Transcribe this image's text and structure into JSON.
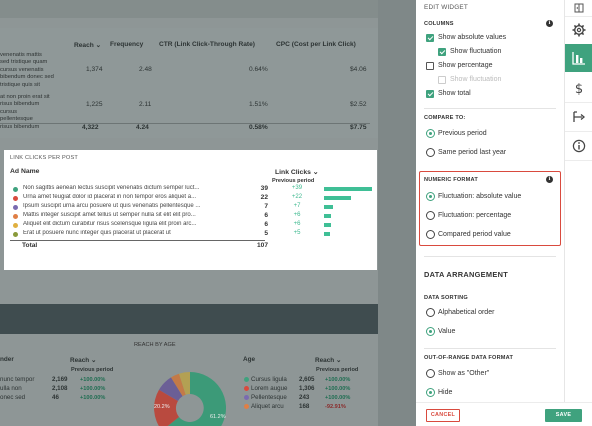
{
  "top_table": {
    "headers": {
      "reach": "Reach",
      "frequency": "Frequency",
      "ctr": "CTR (Link Click-Through Rate)",
      "cpc": "CPC (Cost per Link Click)"
    },
    "row1_desc": [
      "venenatis mattis",
      "sed tristique quam",
      "cursus venenatis",
      "bibendum donec sed",
      "tristique quis sit"
    ],
    "row2_desc": [
      "at non proin erat sit",
      "risus bibendum",
      "cursus",
      "pellentesque",
      "risus bibendum"
    ],
    "rows": [
      {
        "reach": "1,374",
        "frequency": "2.48",
        "ctr": "0.64%",
        "cpc": "$4.06"
      },
      {
        "reach": "1,225",
        "frequency": "2.11",
        "ctr": "1.51%",
        "cpc": "$2.52"
      }
    ],
    "total": {
      "reach": "4,322",
      "frequency": "4.24",
      "ctr": "0.58%",
      "cpc": "$7.75"
    }
  },
  "link_clicks": {
    "title": "LINK CLICKS PER POST",
    "col_ad_name": "Ad Name",
    "col_link_clicks": "Link Clicks",
    "subheader": "Previous period",
    "rows": [
      {
        "name": "Non sagittis aenean lectus suscipit venenatis dictum semper luct...",
        "value": "39",
        "delta": "+39",
        "dot": "#3fa27e",
        "bar_fraction": 1.0
      },
      {
        "name": "Urna amet feugiat dolor id placerat in non tempor eros aliquet a...",
        "value": "22",
        "delta": "+22",
        "dot": "#d94a3e",
        "bar_fraction": 0.56
      },
      {
        "name": "Ipsum suscipit urna arcu posuere ut quis venenatis pellentesque ...",
        "value": "7",
        "delta": "+7",
        "dot": "#7a6bb0",
        "bar_fraction": 0.18
      },
      {
        "name": "Mattis integer suscipit amet tellus ut semper nulla sit elit elit pro...",
        "value": "6",
        "delta": "+6",
        "dot": "#e07f45",
        "bar_fraction": 0.15
      },
      {
        "name": "Aliquet elit dictum curabitur risus scelerisque ligula elit proin arc...",
        "value": "6",
        "delta": "+6",
        "dot": "#e0b040",
        "bar_fraction": 0.15
      },
      {
        "name": "Erat ut posuere nunc integer quis placerat ut placerat ut",
        "value": "5",
        "delta": "+5",
        "dot": "#8a9a3a",
        "bar_fraction": 0.13
      }
    ],
    "total_label": "Total",
    "total_value": "107"
  },
  "bottom": {
    "gender_header": "nder",
    "reach_header": "Reach",
    "previous_period": "Previous period",
    "gender_rows": [
      {
        "label": "nunc tempor",
        "reach": "2,169",
        "delta": "+100.00%"
      },
      {
        "label": "ulla non",
        "reach": "2,108",
        "delta": "+100.00%"
      },
      {
        "label": "onec sed",
        "reach": "46",
        "delta": "+100.00%"
      }
    ],
    "reach_by_age": "REACH BY AGE",
    "pie_labels": [
      "20.2%",
      "61.2%"
    ],
    "age_header": "Age",
    "age_reach_header": "Reach",
    "age_rows": [
      {
        "label": "Cursus ligula",
        "reach": "2,605",
        "delta": "+100.00%",
        "dot": "#3fa27e",
        "down": false
      },
      {
        "label": "Lorem augue",
        "reach": "1,306",
        "delta": "+100.00%",
        "dot": "#d94a3e",
        "down": false
      },
      {
        "label": "Pellentesque",
        "reach": "243",
        "delta": "+100.00%",
        "dot": "#7a6bb0",
        "down": false
      },
      {
        "label": "Aliquet arcu",
        "reach": "168",
        "delta": "-92.91%",
        "dot": "#e07f45",
        "down": true
      }
    ]
  },
  "panel": {
    "title": "EDIT WIDGET",
    "columns_label": "COLUMNS",
    "columns": [
      {
        "label": "Show absolute values",
        "checked": true,
        "disabled": false,
        "indent": false
      },
      {
        "label": "Show fluctuation",
        "checked": true,
        "disabled": false,
        "indent": true
      },
      {
        "label": "Show percentage",
        "checked": false,
        "disabled": false,
        "indent": false
      },
      {
        "label": "Show fluctuation",
        "checked": false,
        "disabled": true,
        "indent": true
      },
      {
        "label": "Show total",
        "checked": true,
        "disabled": false,
        "indent": false
      }
    ],
    "compare_label": "COMPARE TO:",
    "compare_options": [
      {
        "label": "Previous period",
        "selected": true
      },
      {
        "label": "Same period last year",
        "selected": false
      }
    ],
    "numeric_label": "NUMERIC FORMAT",
    "numeric_options": [
      {
        "label": "Fluctuation: absolute value",
        "selected": true
      },
      {
        "label": "Fluctuation: percentage",
        "selected": false
      },
      {
        "label": "Compared period value",
        "selected": false
      }
    ],
    "data_arrangement": "DATA ARRANGEMENT",
    "sorting_label": "DATA SORTING",
    "sorting_options": [
      {
        "label": "Alphabetical order",
        "selected": false
      },
      {
        "label": "Value",
        "selected": true
      }
    ],
    "out_of_range_label": "OUT-OF-RANGE DATA FORMAT",
    "out_of_range_options": [
      {
        "label": "Show as \"Other\"",
        "selected": false
      },
      {
        "label": "Hide",
        "selected": true
      }
    ],
    "cancel": "CANCEL",
    "save": "SAVE"
  },
  "colors": {
    "accent": "#3fa27e",
    "danger": "#d94a3e",
    "bar": "#3fbf96"
  }
}
